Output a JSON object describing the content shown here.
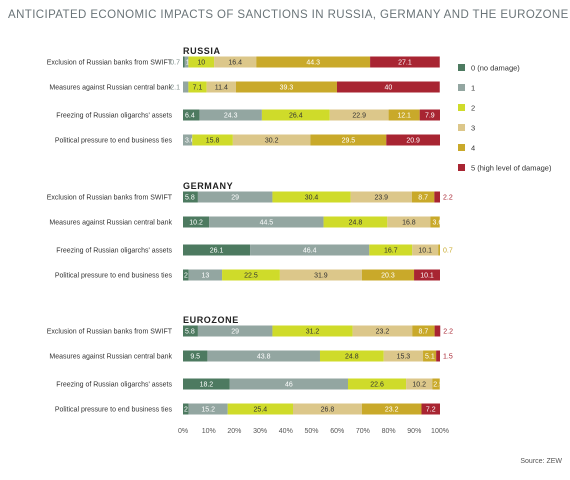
{
  "title": "ANTICIPATED ECONOMIC IMPACTS OF SANCTIONS IN RUSSIA, GERMANY AND THE EUROZONE",
  "source": "Source: ZEW",
  "colors": {
    "title": "#6a7478",
    "label": "#333333",
    "axis": "#555555",
    "series": [
      "#4d7a60",
      "#93a6a1",
      "#cfdb2a",
      "#dcc78a",
      "#c9a92a",
      "#a82532"
    ]
  },
  "chart_data": {
    "type": "bar",
    "orientation": "horizontal-stacked",
    "xlim": [
      0,
      100
    ],
    "xticks": [
      "0%",
      "10%",
      "20%",
      "30%",
      "40%",
      "50%",
      "60%",
      "70%",
      "80%",
      "90%",
      "100%"
    ],
    "legend_position": "right",
    "legend": [
      "0 (no damage)",
      "1",
      "2",
      "3",
      "4",
      "5 (high level of damage)"
    ],
    "categories": [
      "Exclusion of Russian banks from SWIFT",
      "Measures against Russian central bank",
      "Freezing of Russian oligarchs' assets",
      "Political pressure to end business ties"
    ],
    "groups": [
      {
        "name": "RUSSIA",
        "rows": [
          {
            "values": [
              0.7,
              1.4,
              10,
              16.4,
              44.3,
              27.1
            ],
            "labels": [
              "0.7",
              "1.4",
              "10",
              "16.4",
              "44.3",
              "27.1"
            ]
          },
          {
            "values": [
              0,
              2.1,
              7.1,
              11.4,
              39.3,
              40
            ],
            "labels": [
              "",
              "2.1",
              "7.1",
              "11.4",
              "39.3",
              "40"
            ]
          },
          {
            "values": [
              6.4,
              24.3,
              26.4,
              22.9,
              12.1,
              7.9
            ],
            "labels": [
              "6.4",
              "24.3",
              "26.4",
              "22.9",
              "12.1",
              "7.9"
            ]
          },
          {
            "values": [
              0,
              3.6,
              15.8,
              30.2,
              29.5,
              20.9
            ],
            "labels": [
              "",
              "3.6",
              "15.8",
              "30.2",
              "29.5",
              "20.9"
            ]
          }
        ]
      },
      {
        "name": "GERMANY",
        "rows": [
          {
            "values": [
              5.8,
              29,
              30.4,
              23.9,
              8.7,
              2.2
            ],
            "labels": [
              "5.8",
              "29",
              "30.4",
              "23.9",
              "8.7",
              "2.2"
            ]
          },
          {
            "values": [
              10.2,
              44.5,
              24.8,
              16.8,
              3.6,
              0
            ],
            "labels": [
              "10.2",
              "44.5",
              "24.8",
              "16.8",
              "3.6",
              ""
            ]
          },
          {
            "values": [
              26.1,
              46.4,
              16.7,
              10.1,
              0.7,
              0
            ],
            "labels": [
              "26.1",
              "46.4",
              "16.7",
              "10.1",
              "0.7",
              ""
            ]
          },
          {
            "values": [
              2.2,
              13,
              22.5,
              31.9,
              20.3,
              10.1
            ],
            "labels": [
              "2.2",
              "13",
              "22.5",
              "31.9",
              "20.3",
              "10.1"
            ]
          }
        ]
      },
      {
        "name": "EUROZONE",
        "rows": [
          {
            "values": [
              5.8,
              29,
              31.2,
              23.2,
              8.7,
              2.2
            ],
            "labels": [
              "5.8",
              "29",
              "31.2",
              "23.2",
              "8.7",
              "2.2"
            ]
          },
          {
            "values": [
              9.5,
              43.8,
              24.8,
              15.3,
              5.1,
              1.5
            ],
            "labels": [
              "9.5",
              "43.8",
              "24.8",
              "15.3",
              "5.1",
              "1.5"
            ]
          },
          {
            "values": [
              18.2,
              46,
              22.6,
              10.2,
              2.9,
              0
            ],
            "labels": [
              "18.2",
              "46",
              "22.6",
              "10.2",
              "2.9",
              ""
            ]
          },
          {
            "values": [
              2.2,
              15.2,
              25.4,
              26.8,
              23.2,
              7.2
            ],
            "labels": [
              "2.2",
              "15.2",
              "25.4",
              "26.8",
              "23.2",
              "7.2"
            ]
          }
        ]
      }
    ]
  }
}
